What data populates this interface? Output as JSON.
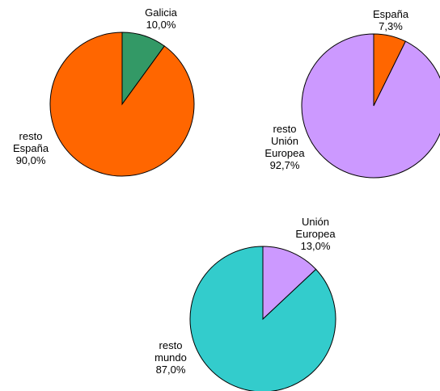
{
  "chart_data": [
    {
      "type": "pie",
      "title": "",
      "slices": [
        {
          "label_lines": [
            "Galicia"
          ],
          "pct_text": "10,0%",
          "value": 10.0,
          "color": "#339966"
        },
        {
          "label_lines": [
            "resto",
            "España"
          ],
          "pct_text": "90,0%",
          "value": 90.0,
          "color": "#ff6600"
        }
      ]
    },
    {
      "type": "pie",
      "title": "",
      "slices": [
        {
          "label_lines": [
            "España"
          ],
          "pct_text": "7,3%",
          "value": 7.3,
          "color": "#ff6600"
        },
        {
          "label_lines": [
            "resto",
            "Unión",
            "Europea"
          ],
          "pct_text": "92,7%",
          "value": 92.7,
          "color": "#cc99ff"
        }
      ]
    },
    {
      "type": "pie",
      "title": "",
      "slices": [
        {
          "label_lines": [
            "Unión",
            "Europea"
          ],
          "pct_text": "13,0%",
          "value": 13.0,
          "color": "#cc99ff"
        },
        {
          "label_lines": [
            "resto",
            "mundo"
          ],
          "pct_text": "87,0%",
          "value": 87.0,
          "color": "#33cccc"
        }
      ]
    }
  ]
}
